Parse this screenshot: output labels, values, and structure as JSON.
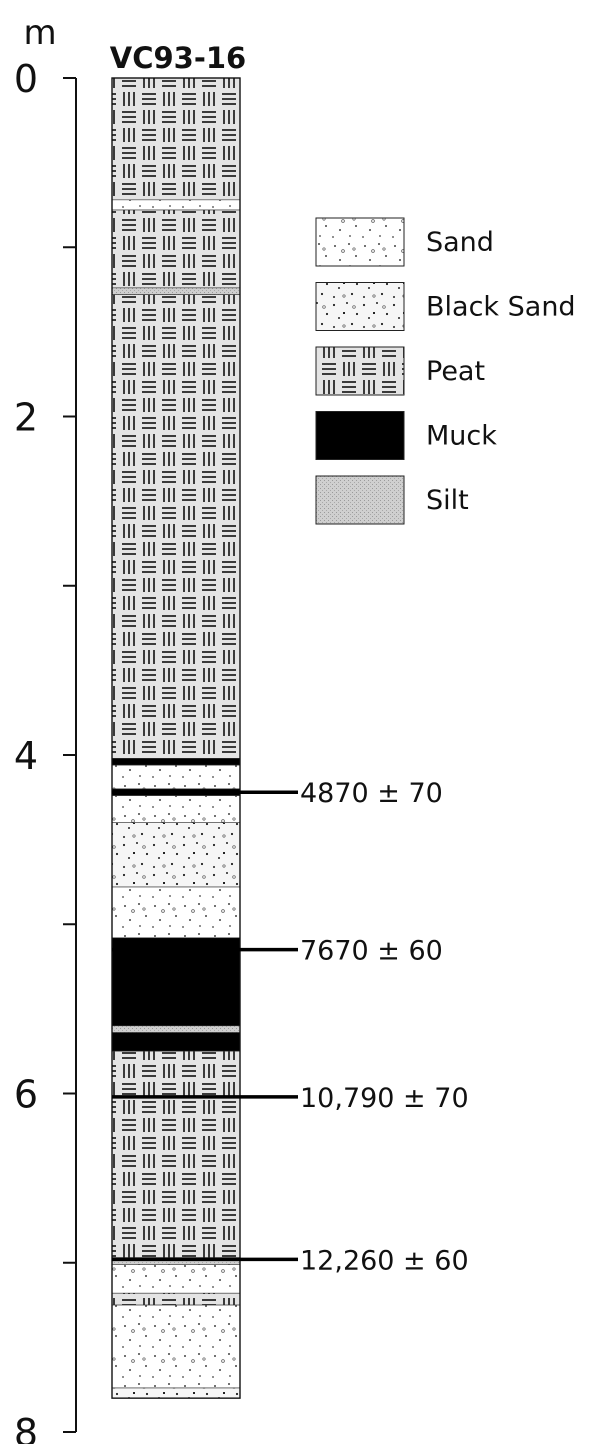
{
  "figure": {
    "unit": "m",
    "core_name": "VC93-16"
  },
  "depth_axis": {
    "ticks": [
      {
        "value": 0,
        "label": "0"
      },
      {
        "value": 1,
        "label": ""
      },
      {
        "value": 2,
        "label": "2"
      },
      {
        "value": 3,
        "label": ""
      },
      {
        "value": 4,
        "label": "4"
      },
      {
        "value": 5,
        "label": ""
      },
      {
        "value": 6,
        "label": "6"
      },
      {
        "value": 7,
        "label": ""
      },
      {
        "value": 8,
        "label": "8"
      }
    ],
    "range": [
      0,
      8
    ],
    "direction": "downward"
  },
  "legend": [
    {
      "key": "sand",
      "label": "Sand"
    },
    {
      "key": "blacksand",
      "label": "Black Sand"
    },
    {
      "key": "peat",
      "label": "Peat"
    },
    {
      "key": "muck",
      "label": "Muck"
    },
    {
      "key": "silt",
      "label": "Silt"
    }
  ],
  "lithology": [
    {
      "top": 0.0,
      "bottom": 0.72,
      "type": "peat"
    },
    {
      "top": 0.72,
      "bottom": 0.78,
      "type": "sand"
    },
    {
      "top": 0.78,
      "bottom": 1.24,
      "type": "peat"
    },
    {
      "top": 1.24,
      "bottom": 1.28,
      "type": "silt"
    },
    {
      "top": 1.28,
      "bottom": 4.02,
      "type": "peat"
    },
    {
      "top": 4.02,
      "bottom": 4.06,
      "type": "muck"
    },
    {
      "top": 4.06,
      "bottom": 4.2,
      "type": "sand"
    },
    {
      "top": 4.2,
      "bottom": 4.24,
      "type": "muck"
    },
    {
      "top": 4.24,
      "bottom": 4.4,
      "type": "sand"
    },
    {
      "top": 4.4,
      "bottom": 4.78,
      "type": "blacksand"
    },
    {
      "top": 4.78,
      "bottom": 5.08,
      "type": "sand"
    },
    {
      "top": 5.08,
      "bottom": 5.6,
      "type": "muck"
    },
    {
      "top": 5.6,
      "bottom": 5.64,
      "type": "silt"
    },
    {
      "top": 5.64,
      "bottom": 5.75,
      "type": "muck"
    },
    {
      "top": 5.75,
      "bottom": 6.97,
      "type": "peat"
    },
    {
      "top": 6.97,
      "bottom": 7.01,
      "type": "silt"
    },
    {
      "top": 7.01,
      "bottom": 7.18,
      "type": "sand"
    },
    {
      "top": 7.18,
      "bottom": 7.25,
      "type": "peat"
    },
    {
      "top": 7.25,
      "bottom": 7.74,
      "type": "sand"
    },
    {
      "top": 7.74,
      "bottom": 7.8,
      "type": "blacksand"
    }
  ],
  "radiocarbon_dates": [
    {
      "depth": 4.22,
      "label": "4870 ± 70"
    },
    {
      "depth": 5.15,
      "label": "7670 ± 60"
    },
    {
      "depth": 6.02,
      "label": "10,790 ± 70"
    },
    {
      "depth": 6.98,
      "label": "12,260 ± 60"
    }
  ]
}
